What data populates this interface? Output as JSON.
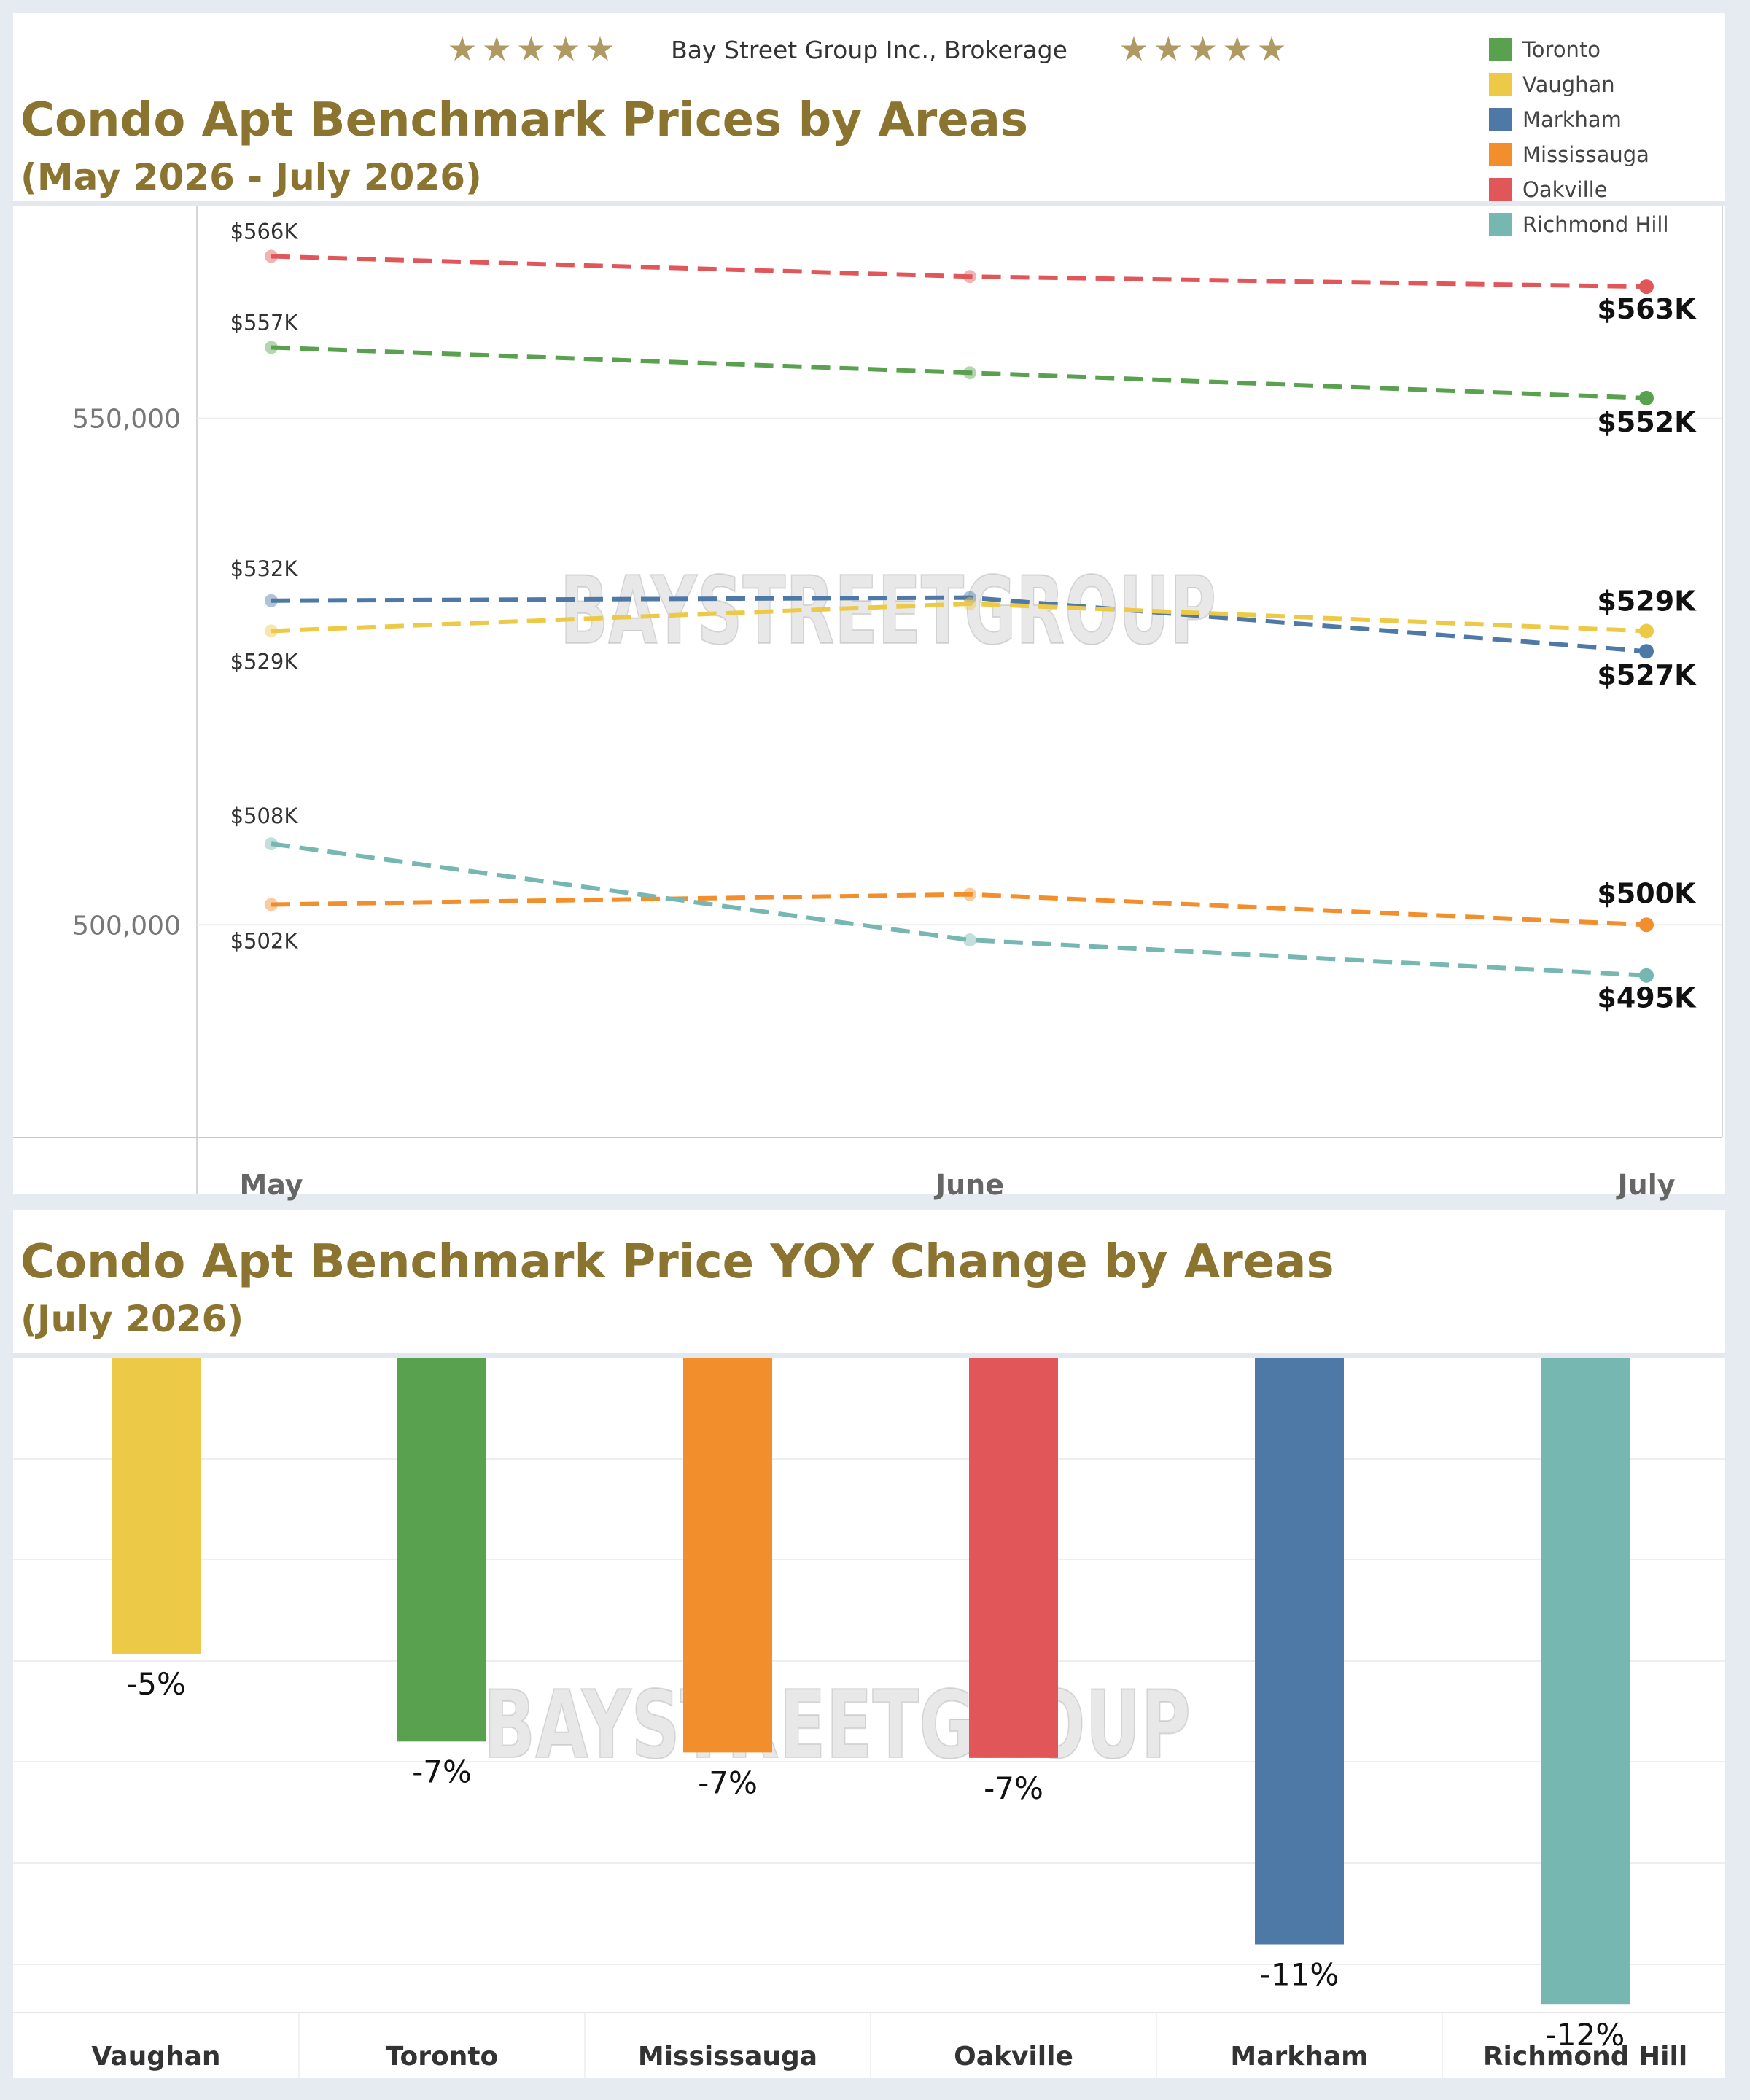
{
  "brand": {
    "stars": "★★★★★",
    "name": "Bay Street Group Inc., Brokerage",
    "watermark": "BAYSTREETGROUP"
  },
  "line_panel": {
    "title": "Condo Apt Benchmark Prices by Areas",
    "subtitle": "(May 2026 - July 2026)"
  },
  "bar_panel": {
    "title": "Condo Apt Benchmark Price YOY Change by Areas",
    "subtitle": "(July 2026)"
  },
  "colors": {
    "Toronto": "#59a14f",
    "Vaughan": "#edc948",
    "Markham": "#4e79a7",
    "Mississauga": "#f28e2b",
    "Oakville": "#e15759",
    "Richmond Hill": "#76b7b2"
  },
  "legend": [
    "Toronto",
    "Vaughan",
    "Markham",
    "Mississauga",
    "Oakville",
    "Richmond Hill"
  ],
  "chart_data": [
    {
      "type": "line",
      "title": "Condo Apt Benchmark Prices by Areas",
      "subtitle": "(May 2026 - July 2026)",
      "categories": [
        "May",
        "June",
        "July"
      ],
      "ylim": [
        479000,
        571000
      ],
      "yticks": [
        500000,
        550000
      ],
      "ytick_labels": [
        "500,000",
        "550,000"
      ],
      "grid": true,
      "legend_position": "top-right",
      "series": [
        {
          "name": "Oakville",
          "values": [
            566000,
            564000,
            563000
          ],
          "labels": [
            "$566K",
            "",
            "$563K"
          ]
        },
        {
          "name": "Toronto",
          "values": [
            557000,
            554500,
            552000
          ],
          "labels": [
            "$557K",
            "",
            "$552K"
          ]
        },
        {
          "name": "Markham",
          "values": [
            532000,
            532300,
            527000
          ],
          "labels": [
            "$532K",
            "",
            "$527K"
          ]
        },
        {
          "name": "Vaughan",
          "values": [
            529000,
            531700,
            529000
          ],
          "labels": [
            "$529K",
            "",
            "$529K"
          ]
        },
        {
          "name": "Mississauga",
          "values": [
            502000,
            503000,
            500000
          ],
          "labels": [
            "$502K",
            "",
            "$500K"
          ]
        },
        {
          "name": "Richmond Hill",
          "values": [
            508000,
            498500,
            495000
          ],
          "labels": [
            "$508K",
            "",
            "$495K"
          ]
        }
      ]
    },
    {
      "type": "bar",
      "title": "Condo Apt Benchmark Price YOY Change by Areas",
      "subtitle": "(July 2026)",
      "categories": [
        "Vaughan",
        "Toronto",
        "Mississauga",
        "Oakville",
        "Markham",
        "Richmond Hill"
      ],
      "values": [
        -5,
        -7,
        -7,
        -7,
        -11,
        -12
      ],
      "value_labels": [
        "-5%",
        "-7%",
        "-7%",
        "-7%",
        "-11%",
        "-12%"
      ],
      "precise_values": [
        -5.4,
        -7.0,
        -7.2,
        -7.3,
        -10.7,
        -11.8
      ],
      "ylim": [
        -13.3,
        0
      ],
      "grid": true
    }
  ]
}
